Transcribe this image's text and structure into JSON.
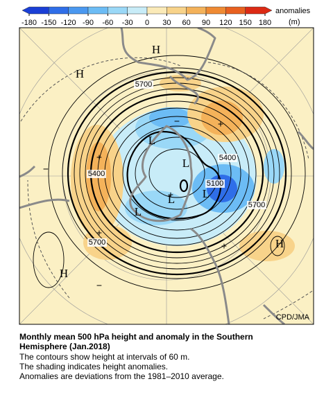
{
  "colorbar": {
    "ticks": [
      -180,
      -150,
      -120,
      -90,
      -60,
      -30,
      0,
      30,
      60,
      90,
      120,
      150,
      180
    ],
    "title": "anomalies",
    "unit": "(m)",
    "colors": [
      "#1a3fd6",
      "#2f6ee8",
      "#4a98f0",
      "#6cbcf5",
      "#9ad8f7",
      "#c8ecf8",
      "#fbeab8",
      "#f8d38a",
      "#f4b25a",
      "#ef8a33",
      "#e8601f",
      "#dc2a14"
    ]
  },
  "map": {
    "centers": [
      "H",
      "H",
      "H",
      "H",
      "L",
      "L",
      "L",
      "L",
      "L"
    ],
    "signs": [
      "+",
      "+",
      "+",
      "+",
      "+",
      "−",
      "−",
      "−"
    ],
    "contour_labels": [
      "5700",
      "5400",
      "5100",
      "5400",
      "5700",
      "5700"
    ],
    "credit": "CPD/JMA"
  },
  "caption": {
    "title": [
      "Monthly mean 500 hPa height and anomaly in the Southern",
      "Hemisphere (Jan.2018)"
    ],
    "lines": [
      "The contours show height at intervals of 60 m.",
      "The shading indicates height anomalies.",
      "Anomalies are deviations from the 1981–2010 average."
    ]
  }
}
